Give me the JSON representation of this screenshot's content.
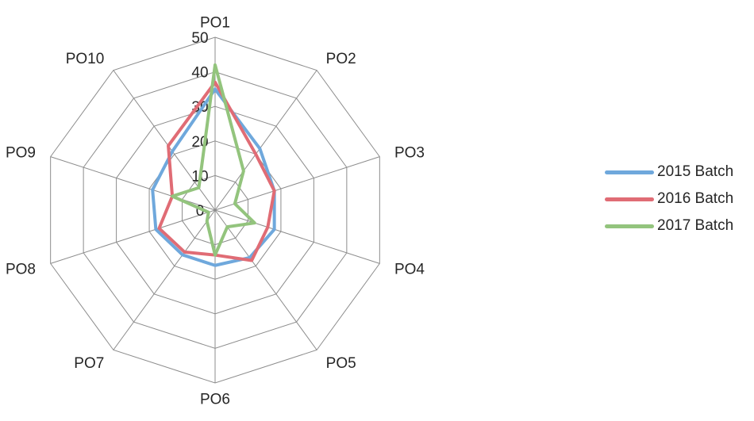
{
  "chart_data": {
    "type": "radar",
    "categories": [
      "PO1",
      "PO2",
      "PO3",
      "PO4",
      "PO5",
      "PO6",
      "PO7",
      "PO8",
      "PO9",
      "PO10"
    ],
    "r_ticks": [
      0,
      10,
      20,
      30,
      40,
      50
    ],
    "rlim": [
      0,
      50
    ],
    "grid": true,
    "legend_position": "right",
    "series": [
      {
        "name": "2015 Batch",
        "color": "#6fa8dc",
        "values": [
          35,
          22,
          18,
          18,
          17,
          16,
          16,
          18,
          19,
          21
        ]
      },
      {
        "name": "2016 Batch",
        "color": "#e06c75",
        "values": [
          37,
          20,
          18,
          16,
          18,
          13,
          15,
          17,
          13,
          23
        ]
      },
      {
        "name": "2017 Batch",
        "color": "#93c47d",
        "values": [
          42,
          14,
          6,
          12,
          6,
          13,
          4,
          2,
          13,
          8
        ]
      }
    ]
  }
}
